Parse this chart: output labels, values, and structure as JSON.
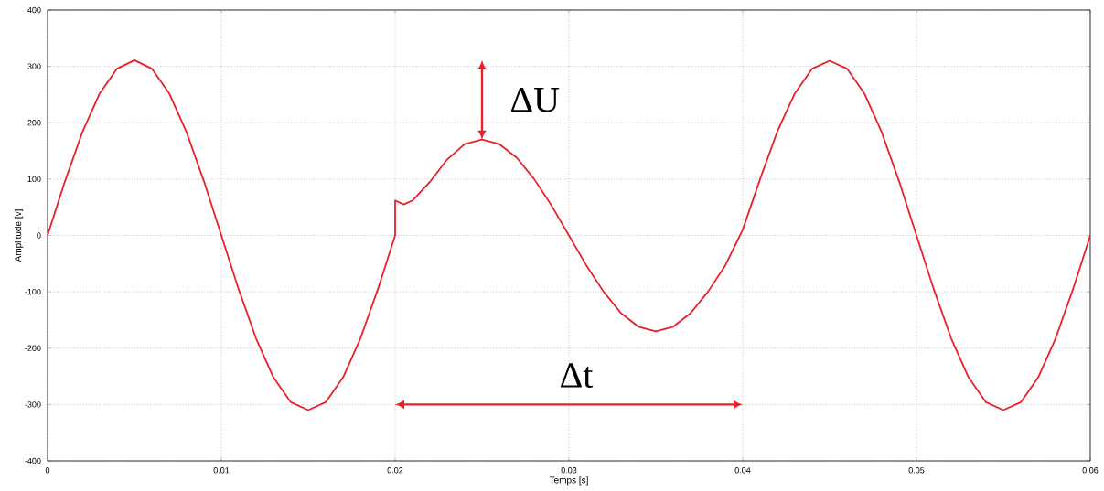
{
  "chart_data": {
    "type": "line",
    "xlabel": "Temps [s]",
    "ylabel": "Amplitude [v]",
    "xlim": [
      0,
      0.06
    ],
    "ylim": [
      -400,
      400
    ],
    "xticks": [
      0,
      0.01,
      0.02,
      0.03,
      0.04,
      0.05,
      0.06
    ],
    "yticks": [
      -400,
      -300,
      -200,
      -100,
      0,
      100,
      200,
      300,
      400
    ],
    "grid": true,
    "line_style": "solid",
    "annotations": [
      {
        "text": "ΔU",
        "x": 0.025,
        "y": 170
      },
      "Δt"
    ],
    "series": [
      {
        "color": "#e8202a",
        "x": [
          0,
          0.001,
          0.002,
          0.003,
          0.004,
          0.005,
          0.006,
          0.007,
          0.008,
          0.009,
          0.01,
          0.011,
          0.012,
          0.013,
          0.014,
          0.015,
          0.016,
          0.017,
          0.018,
          0.019,
          0.02,
          0.02,
          0.0205,
          0.021,
          0.022,
          0.023,
          0.024,
          0.025,
          0.026,
          0.027,
          0.028,
          0.029,
          0.03,
          0.031,
          0.032,
          0.033,
          0.034,
          0.035,
          0.036,
          0.037,
          0.038,
          0.039,
          0.04,
          0.041,
          0.042,
          0.043,
          0.044,
          0.045,
          0.046,
          0.047,
          0.048,
          0.049,
          0.05,
          0.051,
          0.052,
          0.053,
          0.054,
          0.055,
          0.056,
          0.057,
          0.058,
          0.059,
          0.06
        ],
        "values": [
          0,
          96,
          183,
          252,
          296,
          311,
          296,
          252,
          183,
          96,
          0,
          -96,
          -183,
          -252,
          -296,
          -310,
          -296,
          -252,
          -183,
          -96,
          0,
          62,
          55,
          62,
          95,
          135,
          162,
          170,
          162,
          138,
          100,
          53,
          0,
          -53,
          -100,
          -138,
          -162,
          -170,
          -162,
          -138,
          -100,
          -53,
          10,
          100,
          185,
          252,
          296,
          310,
          296,
          252,
          183,
          96,
          0,
          -96,
          -183,
          -252,
          -296,
          -310,
          -296,
          -252,
          -183,
          -96,
          0
        ]
      }
    ]
  }
}
